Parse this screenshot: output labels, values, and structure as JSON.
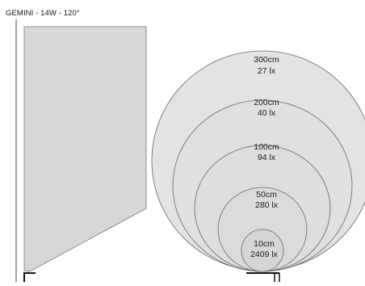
{
  "title": "GEMINI - 14W - 120°",
  "colors": {
    "background": "#ffffff",
    "beam_fill": "#d7d7d7",
    "zone_fill": "#e3e3e3",
    "outline": "#555555",
    "frame_line": "#444444",
    "bracket": "#111111"
  },
  "zones": [
    {
      "distance": "300cm",
      "illuminance": "27 lx"
    },
    {
      "distance": "200cm",
      "illuminance": "40 lx"
    },
    {
      "distance": "100cm",
      "illuminance": "94 lx"
    },
    {
      "distance": "50cm",
      "illuminance": "280 lx"
    },
    {
      "distance": "10cm",
      "illuminance": "2409 lx"
    }
  ]
}
